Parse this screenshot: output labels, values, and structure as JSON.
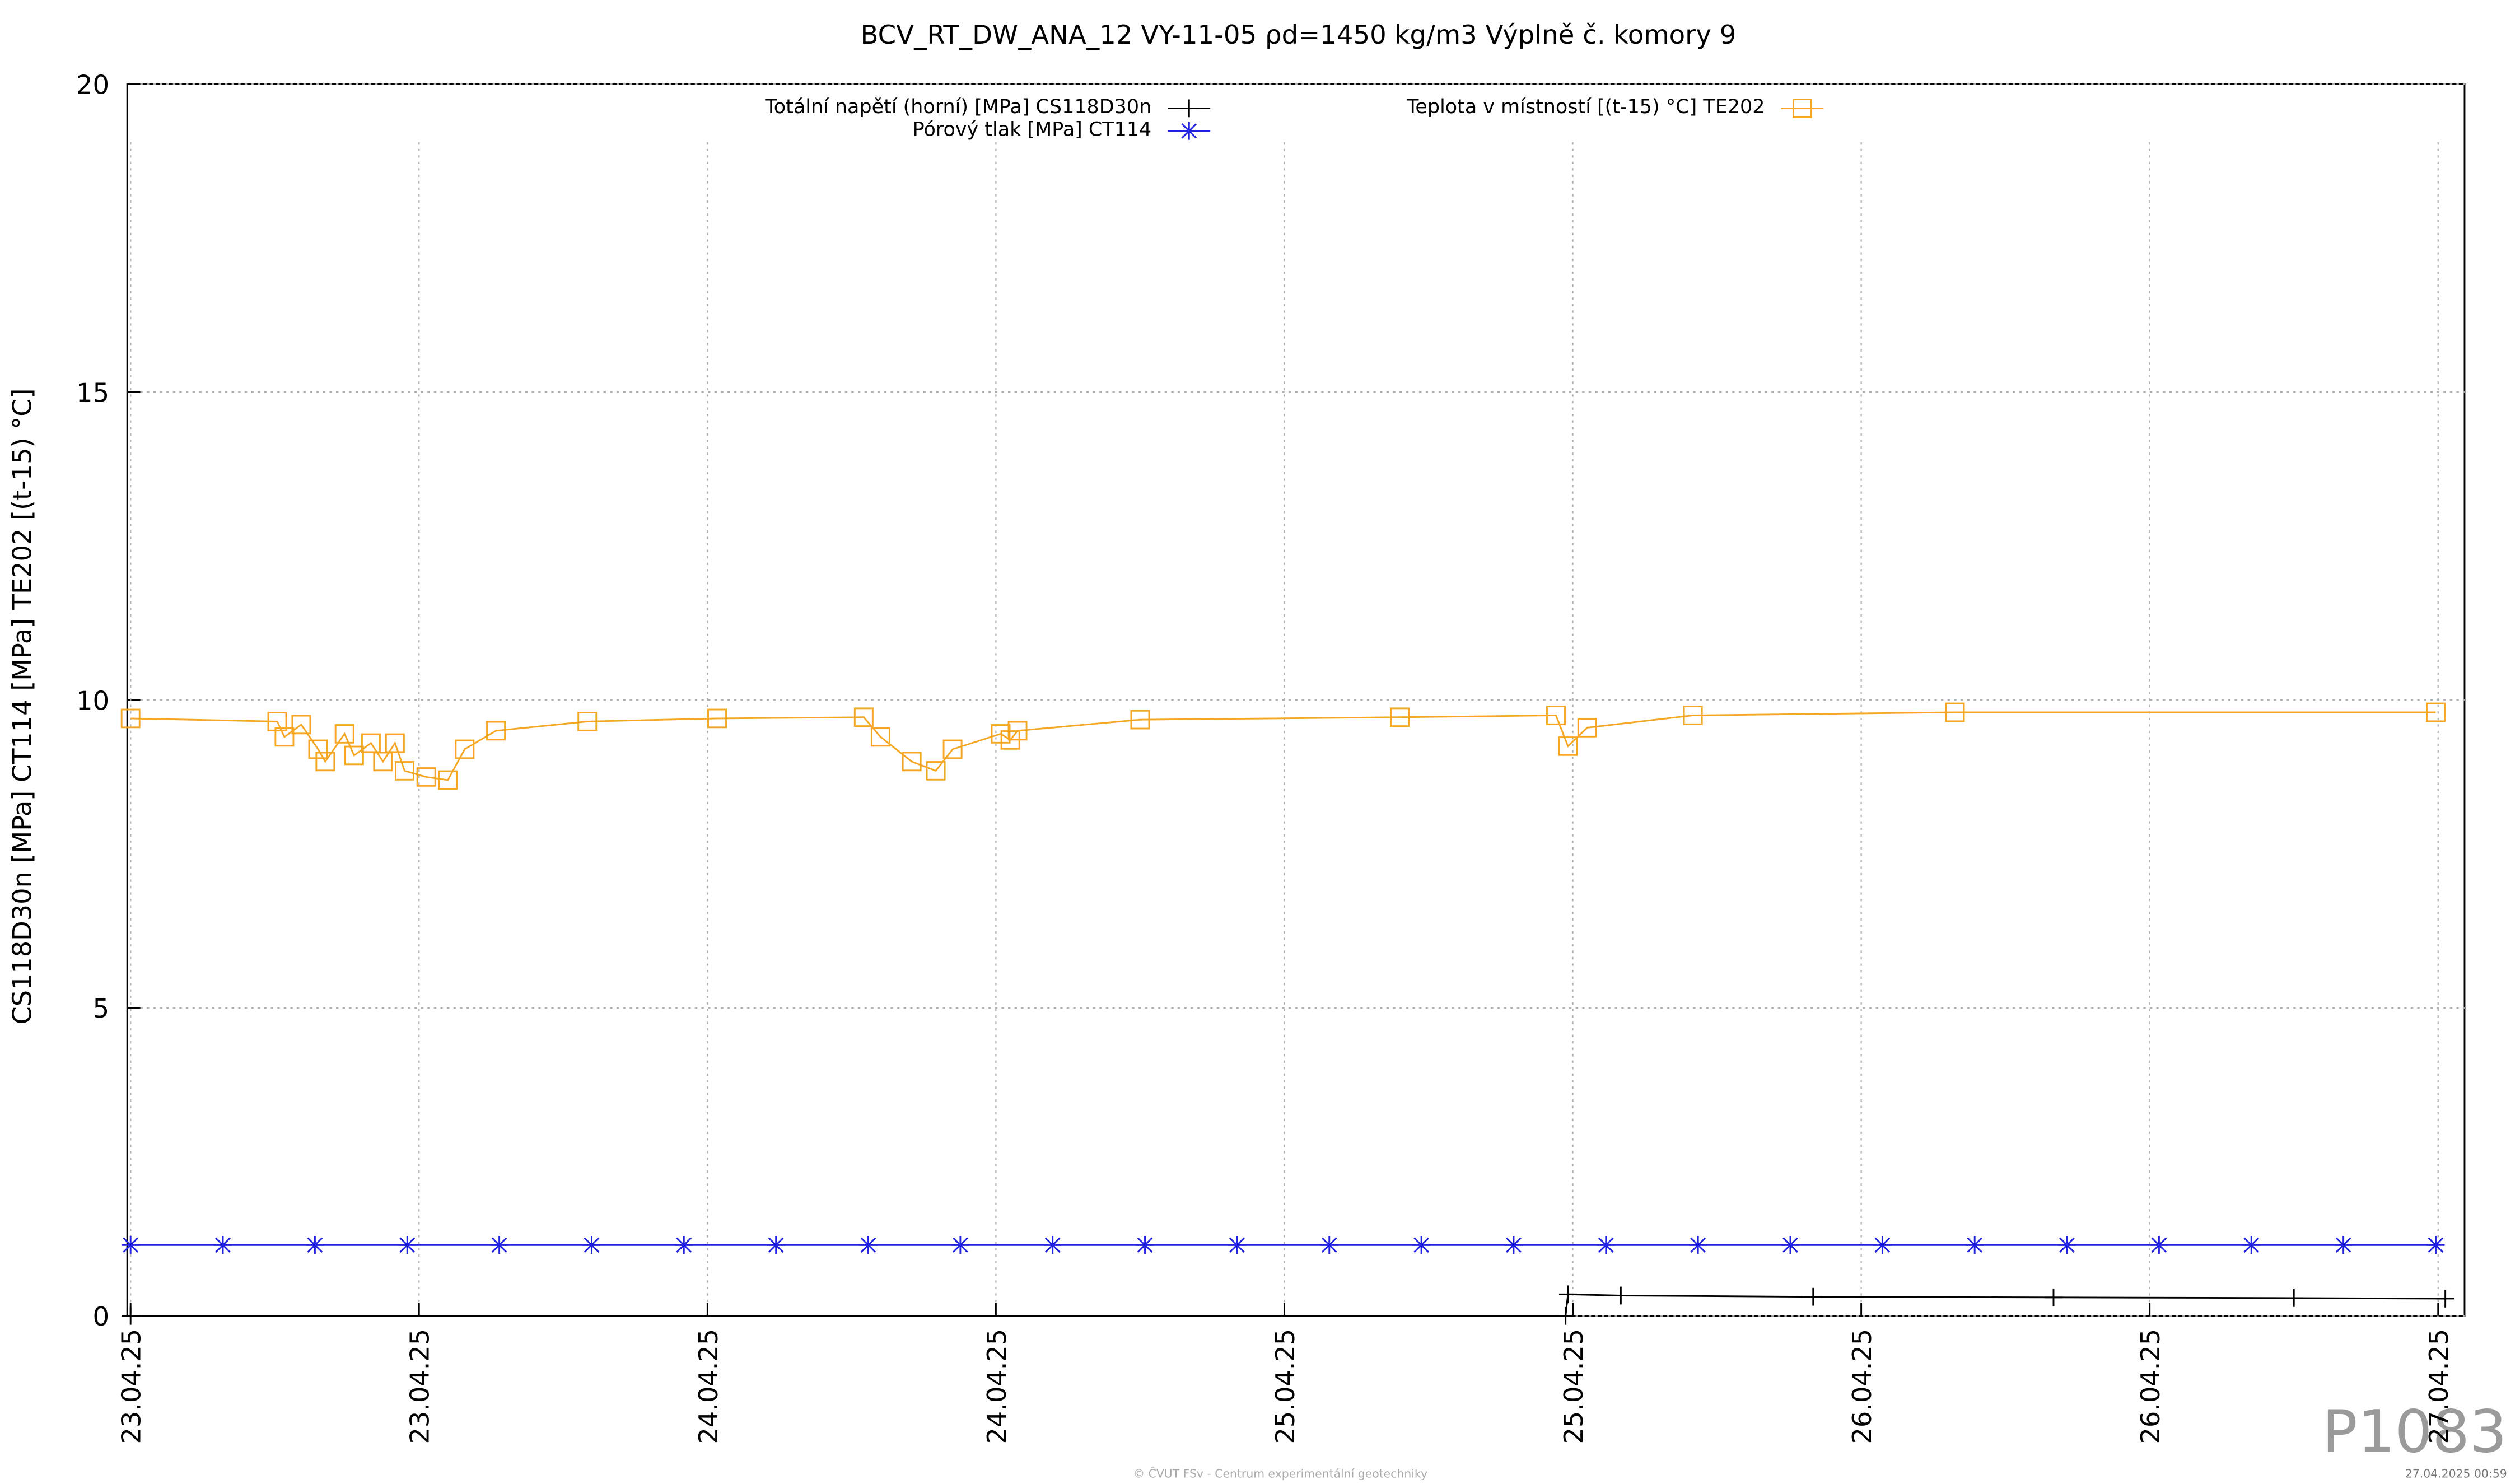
{
  "chart_data": {
    "type": "line",
    "title": "BCV_RT_DW_ANA_12 VY-11-05 ρd=1450 kg/m3 Výplně č. komory 9",
    "y_label": "CS118D30n [MPa] CT114 [MPa] TE202 [(t-15) °C]",
    "xlim": [
      -0.14,
      97.1
    ],
    "xticks": [
      {
        "value": 0,
        "label": "23.04.25"
      },
      {
        "value": 12,
        "label": "23.04.25"
      },
      {
        "value": 24,
        "label": "24.04.25"
      },
      {
        "value": 36,
        "label": "24.04.25"
      },
      {
        "value": 48,
        "label": "25.04.25"
      },
      {
        "value": 60,
        "label": "25.04.25"
      },
      {
        "value": 72,
        "label": "26.04.25"
      },
      {
        "value": 84,
        "label": "26.04.25"
      },
      {
        "value": 96,
        "label": "27.04.25"
      }
    ],
    "ylim": [
      0,
      20
    ],
    "yticks": [
      0,
      5,
      10,
      15,
      20
    ],
    "grid": true,
    "series": [
      {
        "name": "Totální napětí (horní) [MPa] CS118D30n",
        "color": "#000000",
        "marker": "plus",
        "x": [
          0,
          59.7,
          59.8,
          62,
          70,
          80,
          90,
          96.3
        ],
        "values": [
          0,
          0,
          0.35,
          0.33,
          0.31,
          0.3,
          0.29,
          0.28
        ]
      },
      {
        "name": "Pórový tlak [MPa] CT114",
        "color": "#2020e0",
        "marker": "star",
        "x": [
          0,
          3.84,
          7.67,
          11.51,
          15.34,
          19.18,
          23.02,
          26.85,
          30.69,
          34.52,
          38.36,
          42.2,
          46.03,
          49.87,
          53.7,
          57.54,
          61.38,
          65.21,
          69.05,
          72.88,
          76.72,
          80.56,
          84.39,
          88.23,
          92.06,
          95.9
        ],
        "values": [
          1.15,
          1.15,
          1.15,
          1.15,
          1.15,
          1.15,
          1.15,
          1.15,
          1.15,
          1.15,
          1.15,
          1.15,
          1.15,
          1.15,
          1.15,
          1.15,
          1.15,
          1.15,
          1.15,
          1.15,
          1.15,
          1.15,
          1.15,
          1.15,
          1.15,
          1.15
        ]
      },
      {
        "name": "Teplota v místností [(t-15) °C] TE202",
        "color": "#f5a623",
        "marker": "square",
        "x": [
          0,
          6.1,
          6.4,
          7.1,
          7.8,
          8.1,
          8.9,
          9.3,
          10,
          10.5,
          11,
          11.4,
          12.3,
          13.2,
          13.9,
          15.2,
          19,
          24.4,
          30.5,
          31.2,
          32.5,
          33.5,
          34.2,
          36.2,
          36.6,
          36.9,
          42,
          52.8,
          59.3,
          59.8,
          60.6,
          65,
          75.9,
          95.9
        ],
        "values": [
          9.7,
          9.65,
          9.4,
          9.6,
          9.2,
          9.0,
          9.45,
          9.1,
          9.3,
          9.0,
          9.3,
          8.85,
          8.75,
          8.7,
          9.2,
          9.5,
          9.65,
          9.7,
          9.72,
          9.4,
          9.0,
          8.85,
          9.2,
          9.45,
          9.35,
          9.5,
          9.68,
          9.72,
          9.75,
          9.25,
          9.55,
          9.75,
          9.8,
          9.8
        ]
      }
    ]
  },
  "watermark": "P1083",
  "footer": "© ČVUT FSv - Centrum experimentální geotechniky",
  "timestamp": "27.04.2025 00:59"
}
